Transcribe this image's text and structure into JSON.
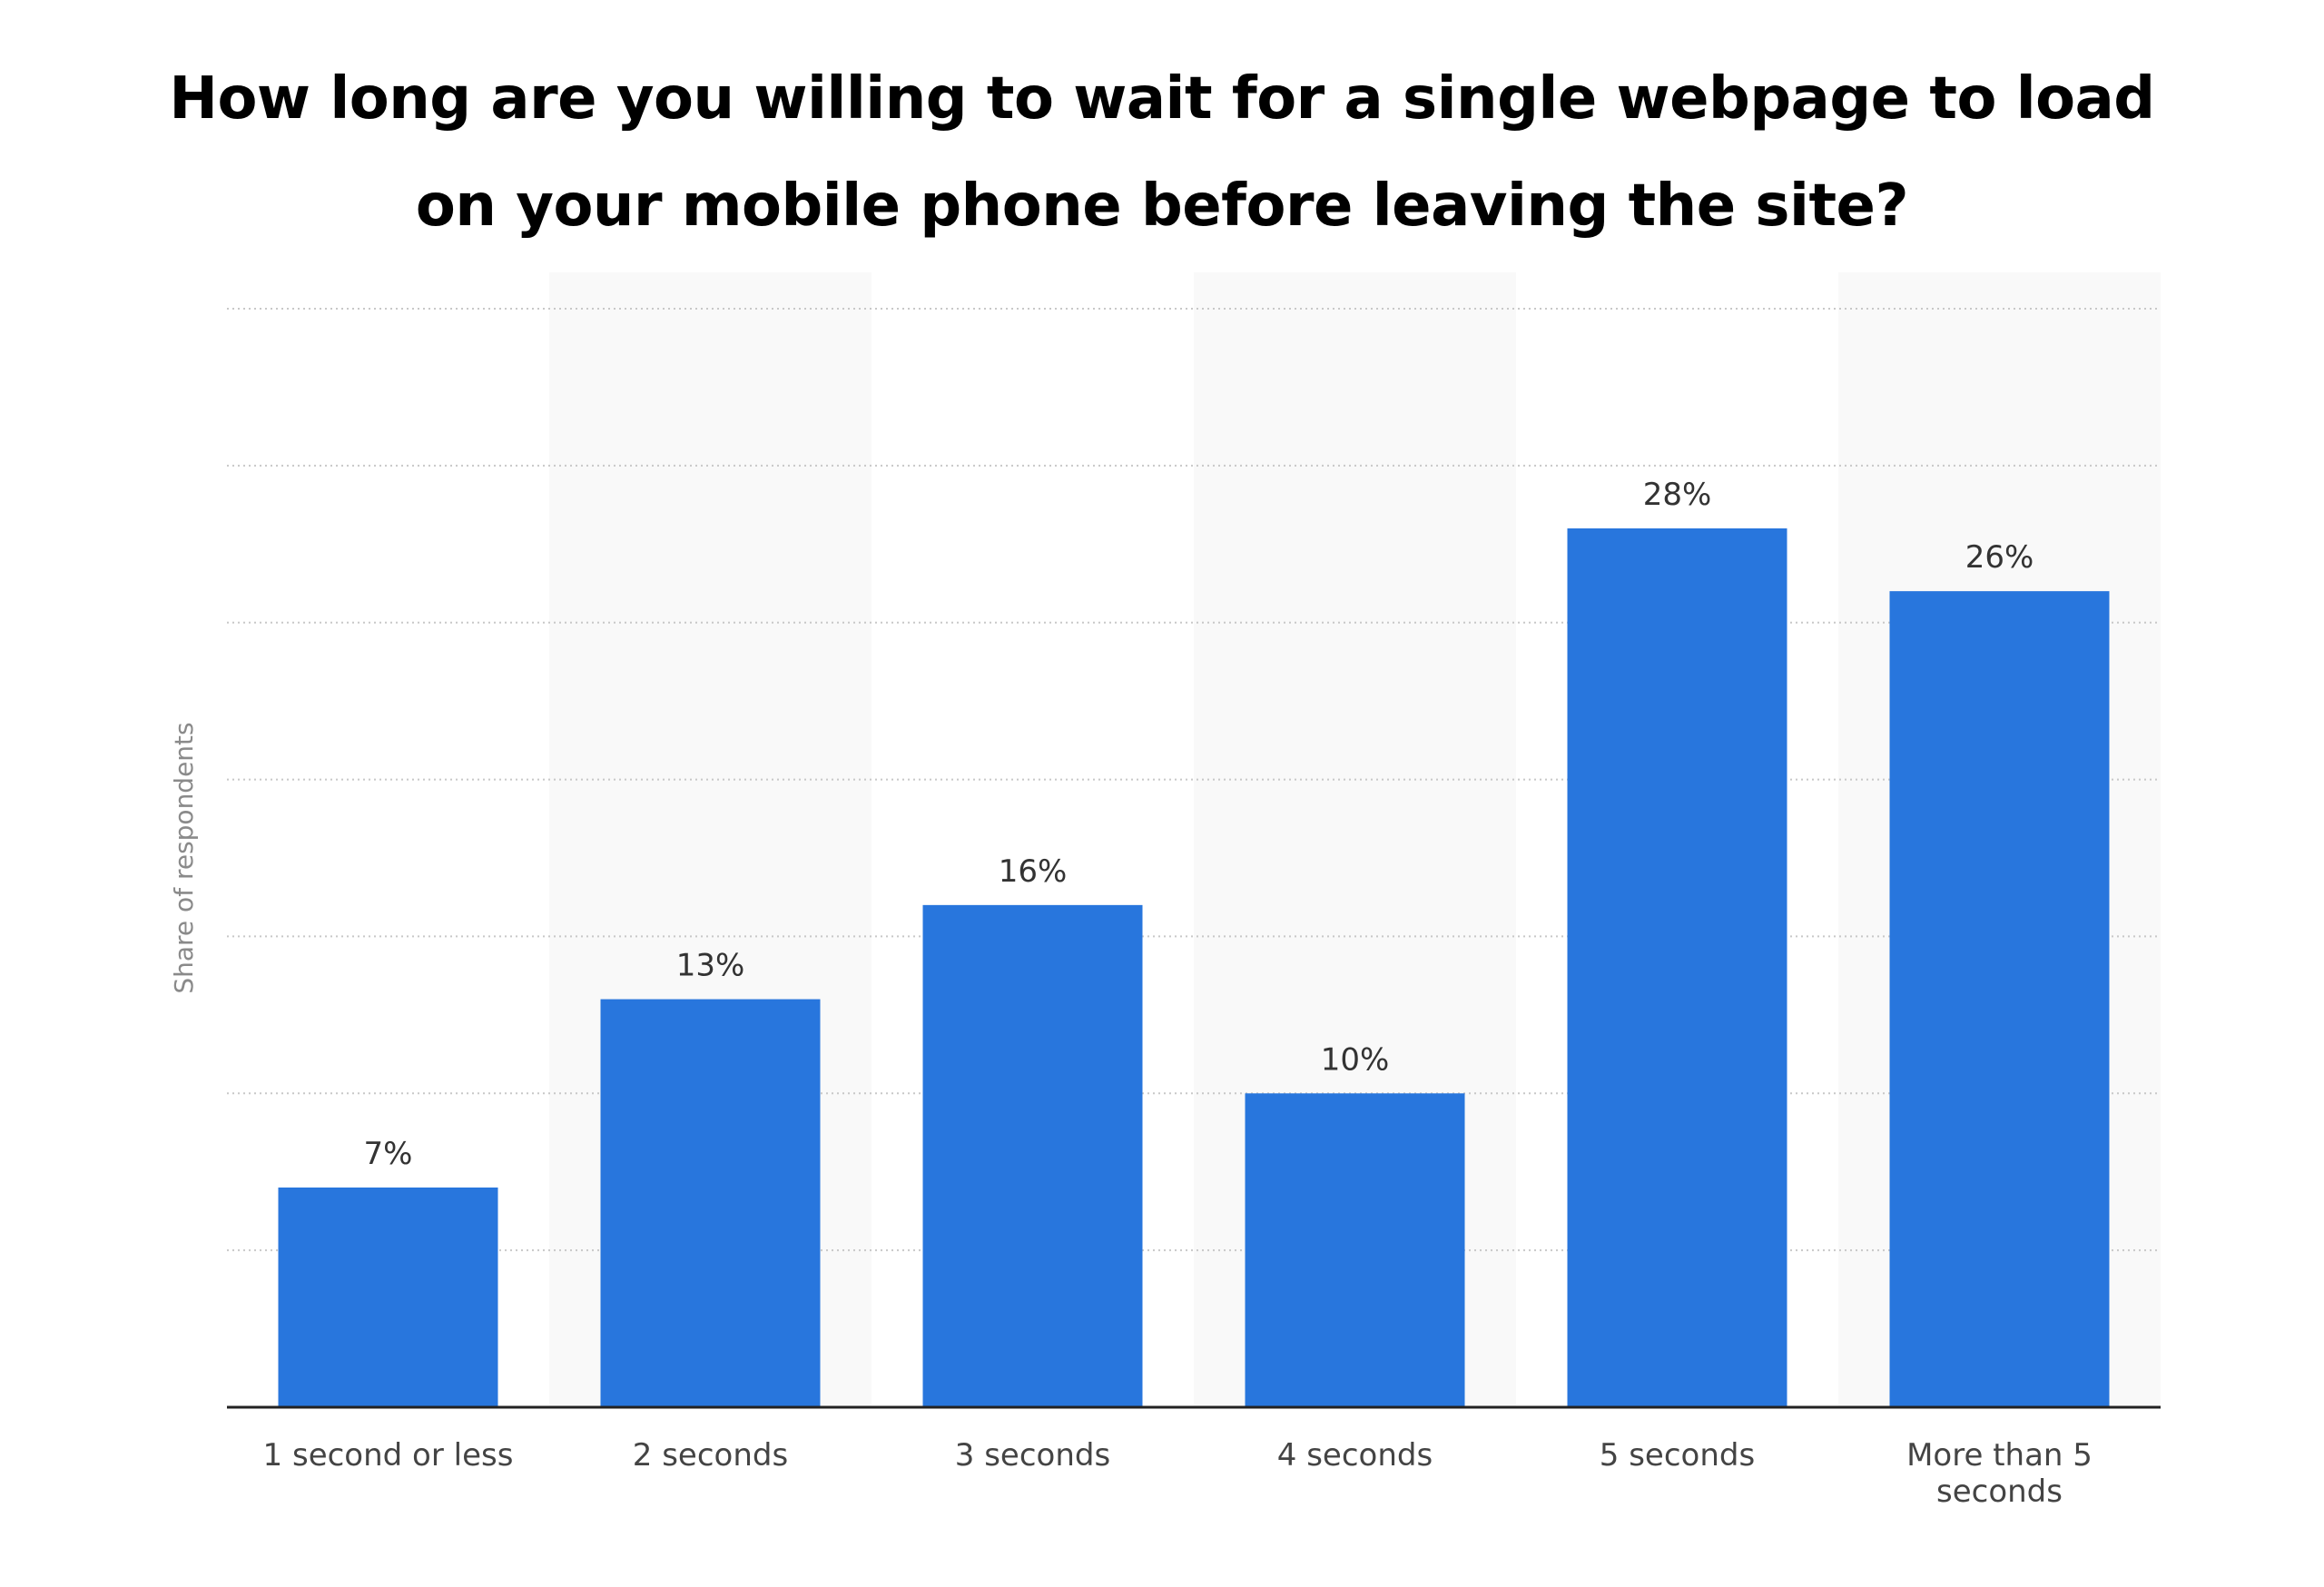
{
  "chart_data": {
    "type": "bar",
    "title": "How long are you willing to wait for a single webpage to load on your mobile phone before leaving the site?",
    "ylabel": "Share of respondents",
    "xlabel": "",
    "categories": [
      "1 second or less",
      "2 seconds",
      "3 seconds",
      "4 seconds",
      "5 seconds",
      "More than 5 seconds"
    ],
    "category_lines": [
      [
        "1 second or less"
      ],
      [
        "2 seconds"
      ],
      [
        "3 seconds"
      ],
      [
        "4 seconds"
      ],
      [
        "5 seconds"
      ],
      [
        "More than 5",
        "seconds"
      ]
    ],
    "values": [
      7,
      13,
      16,
      10,
      28,
      26
    ],
    "value_labels": [
      "7%",
      "13%",
      "16%",
      "10%",
      "28%",
      "26%"
    ],
    "ylim": [
      0,
      35
    ],
    "grid": true,
    "bar_color": "#2876dd",
    "stripe_color": "#f9f9f9",
    "grid_color": "#c8c8c8",
    "axis_color": "#222222"
  }
}
